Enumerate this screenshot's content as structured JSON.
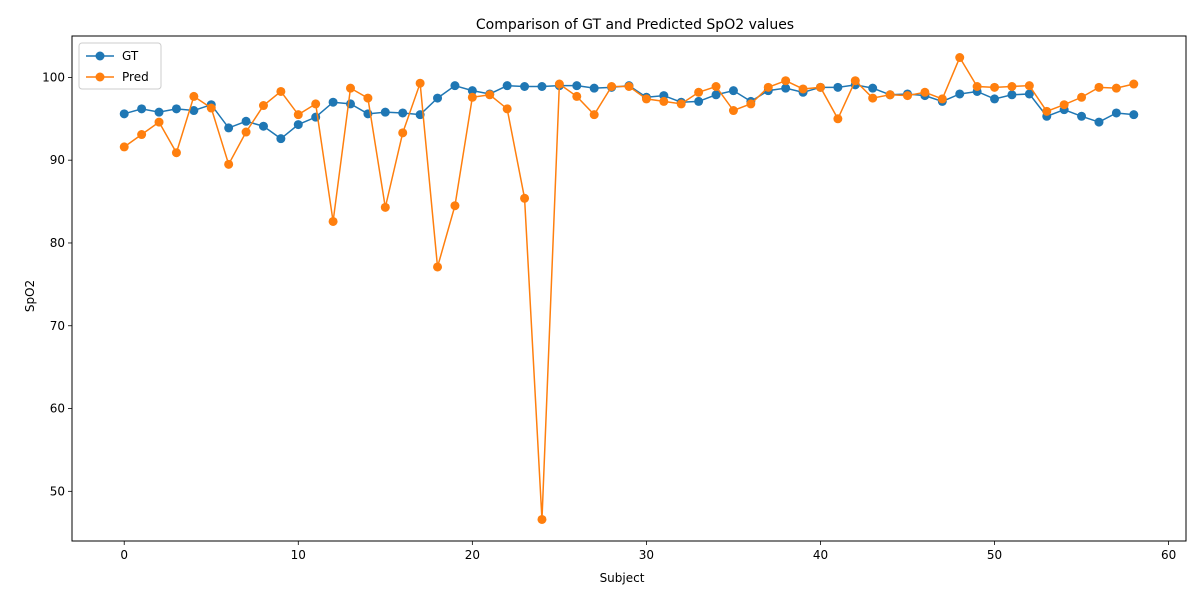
{
  "chart_data": {
    "type": "line",
    "title": "Comparison of GT and Predicted SpO2 values",
    "xlabel": "Subject",
    "ylabel": "SpO2",
    "xlim": [
      -3,
      61
    ],
    "ylim": [
      44,
      105
    ],
    "xticks": [
      0,
      10,
      20,
      30,
      40,
      50,
      60
    ],
    "yticks": [
      50,
      60,
      70,
      80,
      90,
      100
    ],
    "grid": false,
    "legend_position": "top-left",
    "markers": "circle",
    "x": [
      0,
      1,
      2,
      3,
      4,
      5,
      6,
      7,
      8,
      9,
      10,
      11,
      12,
      13,
      14,
      15,
      16,
      17,
      18,
      19,
      20,
      21,
      22,
      23,
      24,
      25,
      26,
      27,
      28,
      29,
      30,
      31,
      32,
      33,
      34,
      35,
      36,
      37,
      38,
      39,
      40,
      41,
      42,
      43,
      44,
      45,
      46,
      47,
      48,
      49,
      50,
      51,
      52,
      53,
      54,
      55,
      56,
      57,
      58
    ],
    "series": [
      {
        "name": "GT",
        "color": "#1f77b4",
        "values": [
          95.6,
          96.2,
          95.8,
          96.2,
          96.0,
          96.7,
          93.9,
          94.7,
          94.1,
          92.6,
          94.3,
          95.2,
          97.0,
          96.8,
          95.6,
          95.8,
          95.7,
          95.5,
          97.5,
          99.0,
          98.4,
          98.0,
          99.0,
          98.9,
          98.9,
          99.0,
          99.0,
          98.7,
          98.8,
          99.0,
          97.6,
          97.8,
          97.0,
          97.1,
          97.9,
          98.4,
          97.1,
          98.4,
          98.7,
          98.2,
          98.8,
          98.8,
          99.1,
          98.7,
          97.9,
          98.0,
          97.8,
          97.1,
          98.0,
          98.3,
          97.4,
          97.9,
          98.0,
          95.3,
          96.1,
          95.3,
          94.6,
          95.7,
          95.5
        ]
      },
      {
        "name": "Pred",
        "color": "#ff7f0e",
        "values": [
          91.6,
          93.1,
          94.6,
          90.9,
          97.7,
          96.3,
          89.5,
          93.4,
          96.6,
          98.3,
          95.5,
          96.8,
          82.6,
          98.7,
          97.5,
          84.3,
          93.3,
          99.3,
          77.1,
          84.5,
          97.6,
          97.9,
          96.2,
          85.4,
          46.6,
          99.2,
          97.7,
          95.5,
          98.9,
          98.9,
          97.4,
          97.1,
          96.8,
          98.2,
          98.9,
          96.0,
          96.8,
          98.8,
          99.6,
          98.6,
          98.8,
          95.0,
          99.6,
          97.5,
          97.9,
          97.8,
          98.2,
          97.4,
          102.4,
          98.9,
          98.8,
          98.9,
          99.0,
          95.9,
          96.7,
          97.6,
          98.8,
          98.7,
          99.2
        ]
      }
    ]
  }
}
